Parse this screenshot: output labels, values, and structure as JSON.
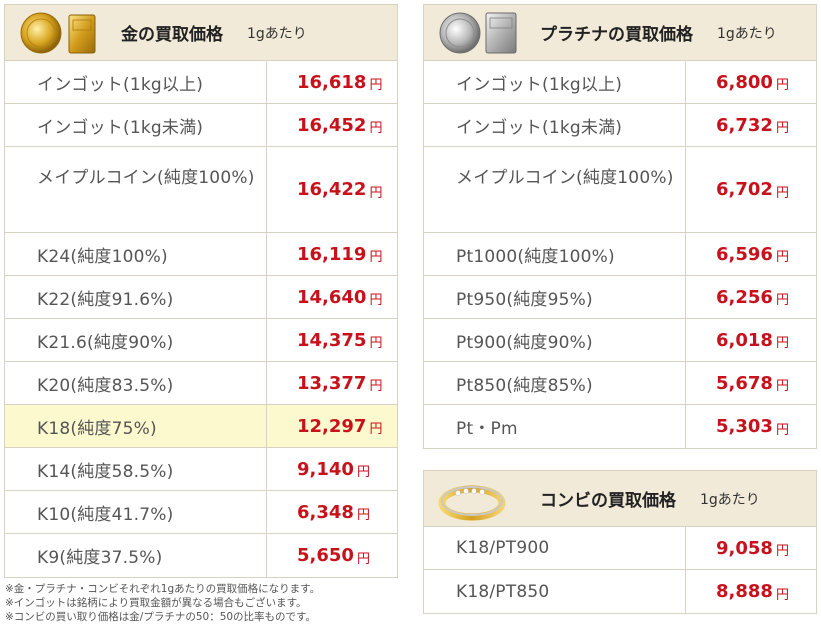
{
  "gold": {
    "title": "金の買取価格",
    "unit": "1gあたり",
    "image_icon": "gold-bars-icon",
    "rows": [
      {
        "name": "インゴット(1kg以上)",
        "price": "16,618",
        "yen": "円"
      },
      {
        "name": "インゴット(1kg未満)",
        "price": "16,452",
        "yen": "円"
      },
      {
        "name": "メイプルコイン(純度100%)",
        "price": "16,422",
        "yen": "円"
      },
      {
        "name": "K24(純度100%)",
        "price": "16,119",
        "yen": "円"
      },
      {
        "name": "K22(純度91.6%)",
        "price": "14,640",
        "yen": "円"
      },
      {
        "name": "K21.6(純度90%)",
        "price": "14,375",
        "yen": "円"
      },
      {
        "name": "K20(純度83.5%)",
        "price": "13,377",
        "yen": "円"
      },
      {
        "name": "K18(純度75%)",
        "price": "12,297",
        "yen": "円"
      },
      {
        "name": "K14(純度58.5%)",
        "price": "9,140",
        "yen": "円"
      },
      {
        "name": "K10(純度41.7%)",
        "price": "6,348",
        "yen": "円"
      },
      {
        "name": "K9(純度37.5%)",
        "price": "5,650",
        "yen": "円"
      }
    ]
  },
  "platinum": {
    "title": "プラチナの買取価格",
    "unit": "1gあたり",
    "image_icon": "platinum-bars-icon",
    "rows": [
      {
        "name": "インゴット(1kg以上)",
        "price": "6,800",
        "yen": "円"
      },
      {
        "name": "インゴット(1kg未満)",
        "price": "6,732",
        "yen": "円"
      },
      {
        "name": "メイプルコイン(純度100%)",
        "price": "6,702",
        "yen": "円"
      },
      {
        "name": "Pt1000(純度100%)",
        "price": "6,596",
        "yen": "円"
      },
      {
        "name": "Pt950(純度95%)",
        "price": "6,256",
        "yen": "円"
      },
      {
        "name": "Pt900(純度90%)",
        "price": "6,018",
        "yen": "円"
      },
      {
        "name": "Pt850(純度85%)",
        "price": "5,678",
        "yen": "円"
      },
      {
        "name": "Pt・Pm",
        "price": "5,303",
        "yen": "円"
      }
    ]
  },
  "combi": {
    "title": "コンビの買取価格",
    "unit": "1gあたり",
    "image_icon": "combi-ring-icon",
    "rows": [
      {
        "name": "K18/PT900",
        "price": "9,058",
        "yen": "円"
      },
      {
        "name": "K18/PT850",
        "price": "8,888",
        "yen": "円"
      }
    ]
  },
  "footnotes": [
    "※金・プラチナ・コンビそれぞれ1gあたりの買取価格になります。",
    "※インゴットは銘柄により買取金額が異なる場合もございます。",
    "※コンビの買い取り価格は金/プラチナの50：50の比率ものです。"
  ],
  "colors": {
    "price_red": "#c8121b",
    "header_bg": "#f2ead8",
    "highlight_bg": "#fcf9cf",
    "border": "#d9d2c4"
  }
}
